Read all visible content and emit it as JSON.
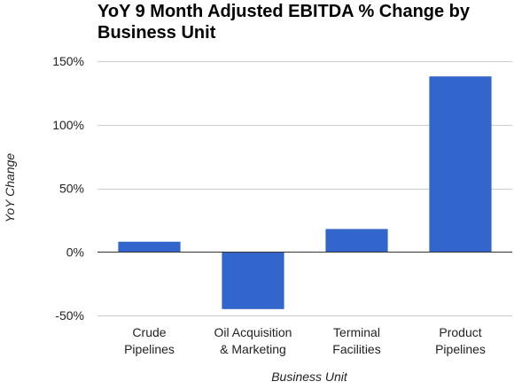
{
  "chart_data": {
    "type": "bar",
    "title_lines": [
      "YoY 9 Month Adjusted EBITDA % Change by",
      "Business Unit"
    ],
    "xlabel": "Business Unit",
    "ylabel": "YoY Change",
    "categories": [
      [
        "Crude",
        "Pipelines"
      ],
      [
        "Oil Acquisition",
        "& Marketing"
      ],
      [
        "Terminal",
        "Facilities"
      ],
      [
        "Product",
        "Pipelines"
      ]
    ],
    "values": [
      8,
      -45,
      18,
      138
    ],
    "ylim": [
      -50,
      150
    ],
    "yticks": [
      -50,
      0,
      50,
      100,
      150
    ],
    "ytick_labels": [
      "-50%",
      "0%",
      "50%",
      "100%",
      "150%"
    ],
    "grid": true,
    "legend": "none",
    "bar_color": "#3366cc",
    "gridline_color": "#cccccc",
    "baseline_color": "#333333"
  }
}
